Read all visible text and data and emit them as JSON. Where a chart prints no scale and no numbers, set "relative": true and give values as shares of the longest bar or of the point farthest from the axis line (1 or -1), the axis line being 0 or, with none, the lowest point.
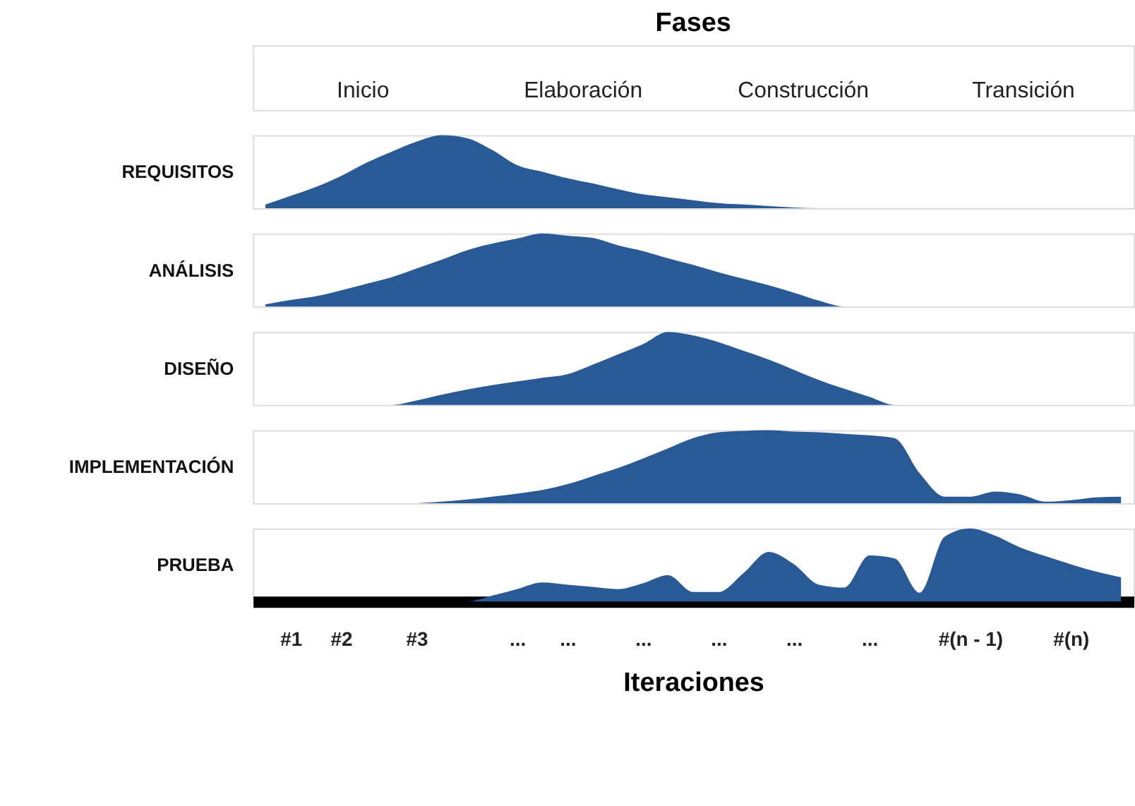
{
  "chart_data": [
    {
      "type": "other",
      "title": "Fases",
      "annotations": [
        "Inicio",
        "Elaboración",
        "Construcción",
        "Transición"
      ]
    },
    {
      "type": "area",
      "relative": true,
      "ylabel": "REQUISITOS",
      "tick_labels": false,
      "color": "#2a5a96",
      "values": [
        0.05,
        0.17,
        0.29,
        0.44,
        0.62,
        0.77,
        0.91,
        1,
        0.96,
        0.8,
        0.59,
        0.5,
        0.41,
        0.34,
        0.26,
        0.19,
        0.15,
        0.11,
        0.07,
        0.05,
        0.03,
        0.01,
        0,
        0,
        0,
        0,
        0,
        0,
        0,
        0,
        0,
        0,
        0,
        0,
        0
      ]
    },
    {
      "type": "area",
      "relative": true,
      "ylabel": "ANÁLISIS",
      "tick_labels": false,
      "color": "#2a5a96",
      "values": [
        0.03,
        0.09,
        0.14,
        0.22,
        0.31,
        0.4,
        0.52,
        0.64,
        0.77,
        0.86,
        0.93,
        1,
        0.97,
        0.94,
        0.84,
        0.76,
        0.66,
        0.57,
        0.47,
        0.38,
        0.29,
        0.19,
        0.08,
        0,
        0,
        0,
        0,
        0,
        0,
        0,
        0,
        0,
        0,
        0,
        0
      ]
    },
    {
      "type": "area",
      "relative": true,
      "ylabel": "DISEÑO",
      "tick_labels": false,
      "color": "#2a5a96",
      "values": [
        0,
        0,
        0,
        0,
        0,
        0,
        0.06,
        0.14,
        0.21,
        0.27,
        0.32,
        0.37,
        0.42,
        0.55,
        0.69,
        0.83,
        1,
        0.95,
        0.86,
        0.74,
        0.62,
        0.48,
        0.34,
        0.22,
        0.11,
        0,
        0,
        0,
        0,
        0,
        0,
        0,
        0,
        0,
        0
      ]
    },
    {
      "type": "area",
      "relative": true,
      "ylabel": "IMPLEMENTACIÓN",
      "tick_labels": false,
      "color": "#2a5a96",
      "values": [
        0,
        0,
        0,
        0,
        0,
        0,
        0,
        0.02,
        0.05,
        0.09,
        0.13,
        0.18,
        0.26,
        0.37,
        0.48,
        0.61,
        0.75,
        0.89,
        0.97,
        0.99,
        1,
        0.98,
        0.97,
        0.95,
        0.93,
        0.89,
        0.41,
        0.09,
        0.09,
        0.16,
        0.12,
        0.02,
        0.04,
        0.08,
        0.09
      ]
    },
    {
      "type": "area",
      "relative": true,
      "ylabel": "PRUEBA",
      "xlabel": "Iteraciones",
      "tick_labels": "x",
      "color": "#2a5a96",
      "categories": [
        null,
        "#1",
        null,
        "#2",
        null,
        null,
        "#3",
        null,
        null,
        null,
        "...",
        null,
        "...",
        null,
        null,
        "...",
        null,
        null,
        "...",
        null,
        null,
        "...",
        null,
        null,
        "...",
        null,
        null,
        null,
        "#(n - 1)",
        null,
        null,
        null,
        "#(n)",
        null,
        null
      ],
      "values": [
        0,
        0,
        0,
        0,
        0,
        0,
        0,
        0,
        0,
        0.08,
        0.17,
        0.26,
        0.23,
        0.2,
        0.17,
        0.25,
        0.36,
        0.13,
        0.13,
        0.39,
        0.68,
        0.51,
        0.23,
        0.19,
        0.63,
        0.59,
        0.12,
        0.89,
        1,
        0.9,
        0.74,
        0.62,
        0.51,
        0.41,
        0.33
      ]
    }
  ]
}
